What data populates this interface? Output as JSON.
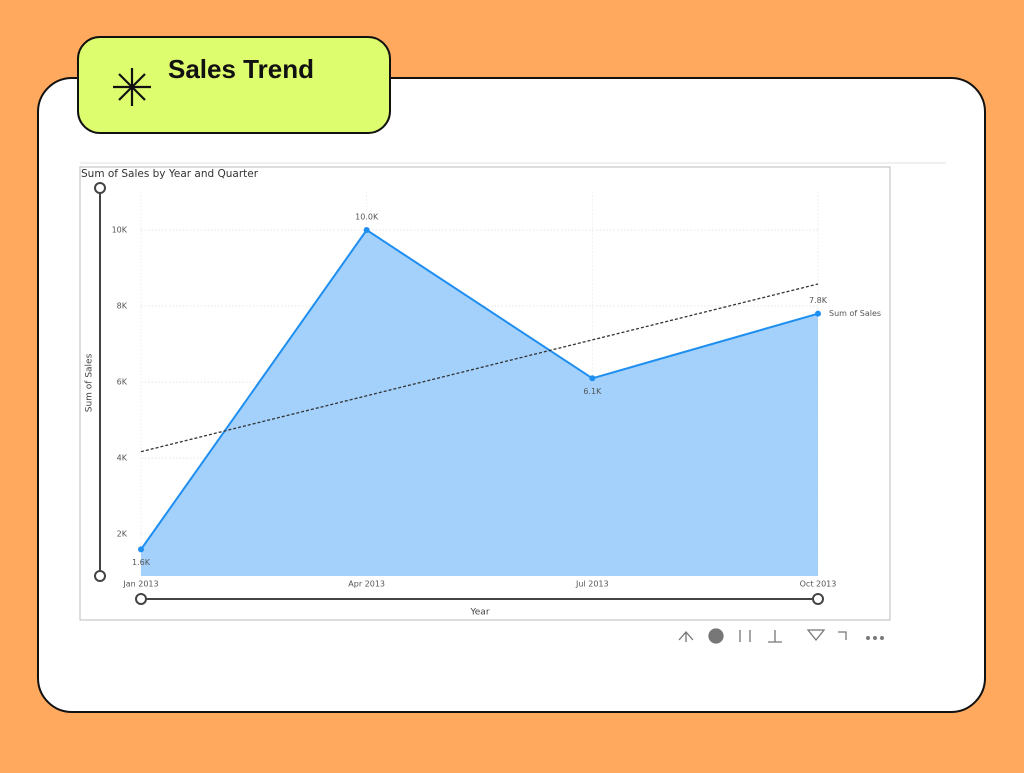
{
  "header": {
    "title": "Sales Trend"
  },
  "chart_data": {
    "type": "area",
    "title": "Sum of Sales by Year and Quarter",
    "x_label": "Year",
    "y_label": "Sum of Sales",
    "categories": [
      "Jan 2013",
      "Apr 2013",
      "Jul 2013",
      "Oct 2013"
    ],
    "series": [
      {
        "name": "Sum of Sales",
        "color": "#1E8EF0",
        "fill": "#A3D1FC",
        "values": [
          1600,
          10000,
          6100,
          7800
        ],
        "value_labels": [
          "1.6K",
          "10.0K",
          "6.1K",
          "7.8K"
        ]
      }
    ],
    "trendline": {
      "values": [
        4170,
        8580
      ],
      "color": "#333333"
    },
    "ylim": [
      900,
      11000
    ],
    "yticks": [
      {
        "value": 2000,
        "label": "2K"
      },
      {
        "value": 4000,
        "label": "4K"
      },
      {
        "value": 6000,
        "label": "6K"
      },
      {
        "value": 8000,
        "label": "8K"
      },
      {
        "value": 10000,
        "label": "10K"
      }
    ],
    "grid": true
  }
}
